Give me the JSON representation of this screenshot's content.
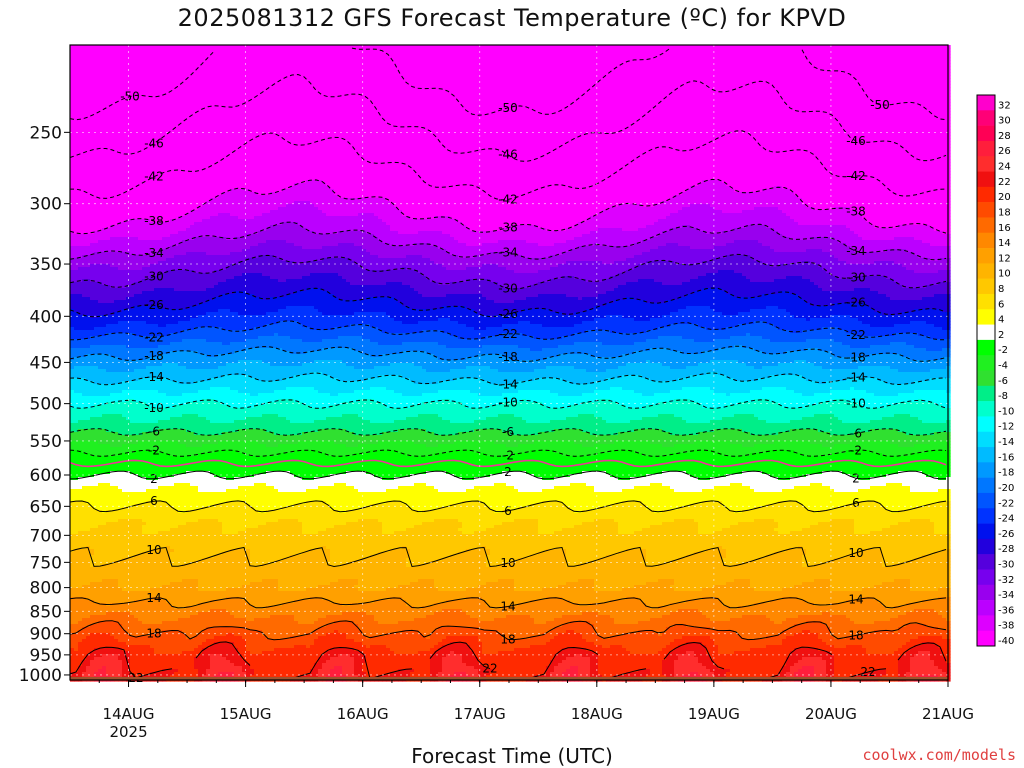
{
  "title": "2025081312 GFS Forecast Temperature (ºC) for KPVD",
  "watermark": "coolwx.com/models",
  "chart_data": {
    "type": "heatmap",
    "title": "2025081312 GFS Forecast Temperature (ºC) for KPVD",
    "xlabel": "Forecast Time (UTC)",
    "ylabel": "",
    "y_scale": "log",
    "y_inverted": true,
    "y_ticks": [
      250,
      300,
      350,
      400,
      450,
      500,
      550,
      600,
      650,
      700,
      750,
      800,
      850,
      900,
      950,
      1000
    ],
    "y_range": [
      200,
      1013
    ],
    "x_ticks": [
      "14AUG",
      "15AUG",
      "16AUG",
      "17AUG",
      "18AUG",
      "19AUG",
      "20AUG",
      "21AUG"
    ],
    "x_year_label": "2025",
    "x_range_days": [
      13.5,
      21.0
    ],
    "grid": true,
    "colorbar_levels": [
      32,
      30,
      28,
      26,
      24,
      22,
      20,
      18,
      16,
      14,
      12,
      10,
      8,
      6,
      4,
      2,
      -2,
      -4,
      -6,
      -8,
      -10,
      -12,
      -14,
      -16,
      -18,
      -20,
      -22,
      -24,
      -26,
      -28,
      -30,
      -32,
      -34,
      -36,
      -38,
      -40
    ],
    "colorbar_colors": [
      "#ff00cc",
      "#ff0077",
      "#ff0055",
      "#ff1e3c",
      "#ff2d2d",
      "#f01010",
      "#ff2a00",
      "#ff4b00",
      "#ff6a00",
      "#ff8800",
      "#ffa000",
      "#ffb400",
      "#ffc800",
      "#ffe000",
      "#ffff00",
      "#ffffff",
      "#00ff00",
      "#20f020",
      "#30e030",
      "#00ee88",
      "#00ffcc",
      "#00ffff",
      "#00ddff",
      "#00bbff",
      "#0099ff",
      "#0077ff",
      "#0055ff",
      "#0033ff",
      "#0011ee",
      "#2200dd",
      "#5500dd",
      "#7700ee",
      "#9900ee",
      "#bb00ff",
      "#dd00ff",
      "#ff00ff"
    ],
    "isotherm_levels": [
      -50,
      -46,
      -42,
      -38,
      -34,
      -30,
      -26,
      -22,
      -18,
      -14,
      -10,
      -6,
      -2,
      2,
      6,
      10,
      14,
      18,
      22
    ],
    "freezing_line_color": "#ee3399",
    "profile_pressure_hpa": [
      200,
      230,
      260,
      290,
      320,
      350,
      380,
      410,
      440,
      470,
      500,
      530,
      560,
      590,
      620,
      650,
      680,
      710,
      740,
      770,
      800,
      830,
      860,
      890,
      920,
      950,
      980,
      1013
    ],
    "profile_temperature_c": [
      -52,
      -48,
      -44,
      -40,
      -36,
      -31,
      -27,
      -23,
      -18,
      -14,
      -10,
      -7,
      -3,
      1,
      4,
      6,
      8,
      9,
      10,
      11,
      12,
      14,
      16,
      18,
      20,
      22,
      23,
      24
    ],
    "ground_color": "#a0522d"
  }
}
